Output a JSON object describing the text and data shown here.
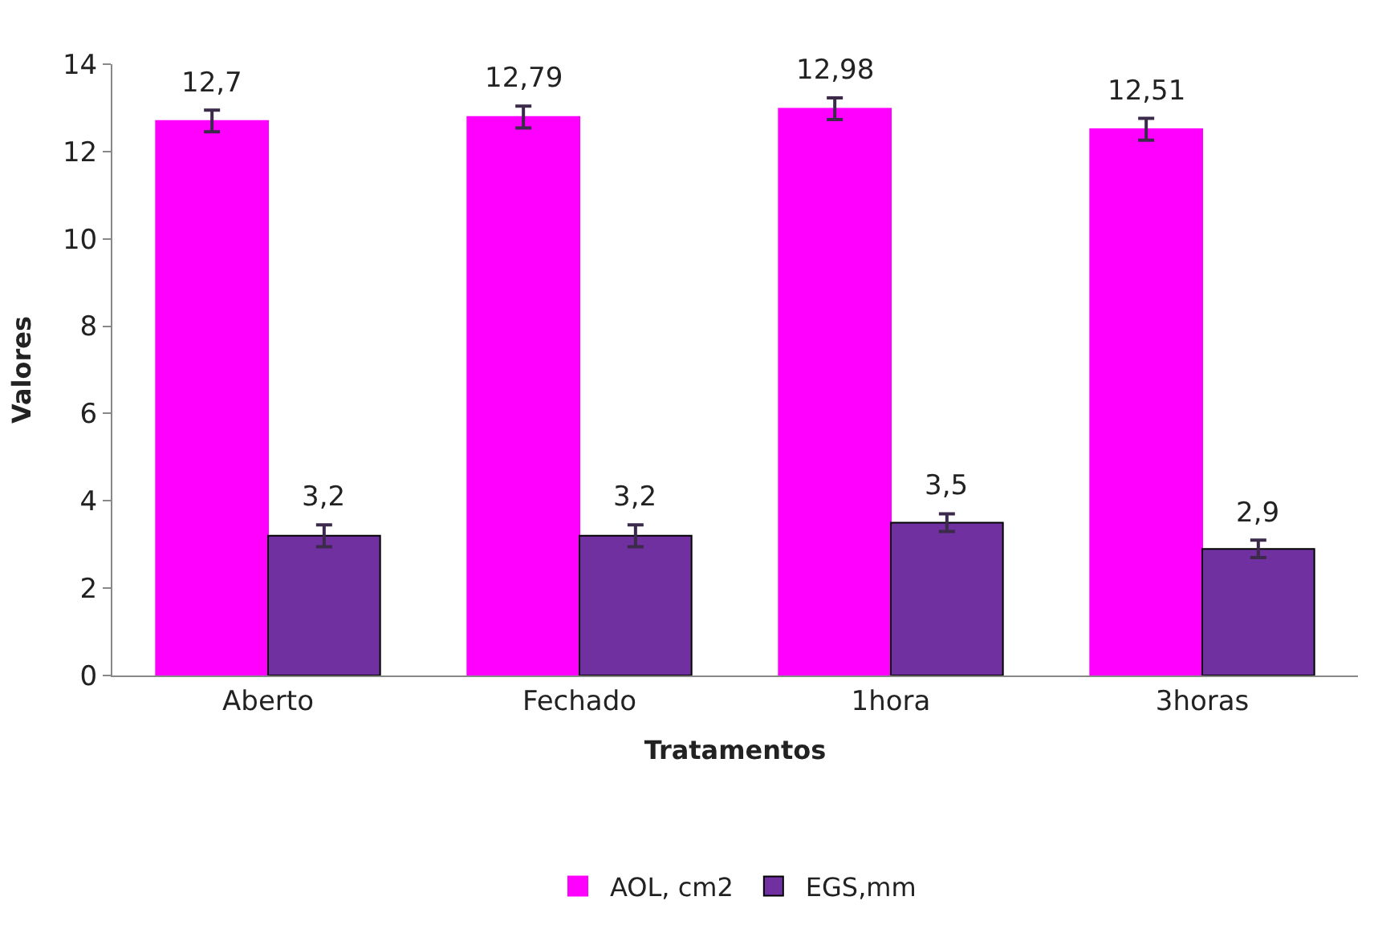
{
  "chart_data": {
    "type": "bar",
    "xlabel": "Tratamentos",
    "ylabel": "Valores",
    "categories": [
      "Aberto",
      "Fechado",
      "1hora",
      "3horas"
    ],
    "series": [
      {
        "name": "AOL, cm2",
        "color": "#ff00ff",
        "values": [
          12.7,
          12.79,
          12.98,
          12.51
        ],
        "errors": [
          0.25,
          0.25,
          0.25,
          0.25
        ],
        "value_labels": [
          "12,7",
          "12,79",
          "12,98",
          "12,51"
        ]
      },
      {
        "name": "EGS,mm",
        "color": "#7030a0",
        "values": [
          3.2,
          3.2,
          3.5,
          2.9
        ],
        "errors": [
          0.25,
          0.25,
          0.2,
          0.2
        ],
        "value_labels": [
          "3,2",
          "3,2",
          "3,5",
          "2,9"
        ]
      }
    ],
    "ylim": [
      0,
      14
    ],
    "yticks": [
      0,
      2,
      4,
      6,
      8,
      10,
      12,
      14
    ],
    "legend": "bottom"
  }
}
